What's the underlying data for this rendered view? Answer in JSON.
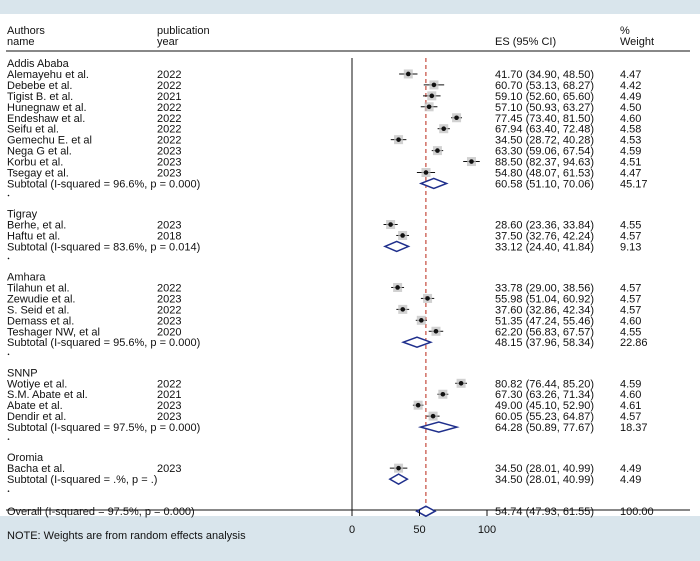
{
  "chart_data": {
    "type": "forest",
    "headers": {
      "authors": "Authors",
      "name": "name",
      "publication": "publication",
      "year": "year",
      "es": "ES (95% CI)",
      "pct": "%",
      "weight": "Weight"
    },
    "groups": [
      {
        "name": "Addis Ababa",
        "studies": [
          {
            "author": "Alemayehu et al.",
            "year": "2022",
            "es": 41.7,
            "lo": 34.9,
            "hi": 48.5,
            "ci_text": "41.70 (34.90, 48.50)",
            "weight": "4.47"
          },
          {
            "author": "Debebe et al.",
            "year": "2022",
            "es": 60.7,
            "lo": 53.13,
            "hi": 68.27,
            "ci_text": "60.70 (53.13, 68.27)",
            "weight": "4.42"
          },
          {
            "author": "Tigist B. et al.",
            "year": "2021",
            "es": 59.1,
            "lo": 52.6,
            "hi": 65.6,
            "ci_text": "59.10 (52.60, 65.60)",
            "weight": "4.49"
          },
          {
            "author": "Hunegnaw et al.",
            "year": "2022",
            "es": 57.1,
            "lo": 50.93,
            "hi": 63.27,
            "ci_text": "57.10 (50.93, 63.27)",
            "weight": "4.50"
          },
          {
            "author": "Endeshaw et al.",
            "year": "2022",
            "es": 77.45,
            "lo": 73.4,
            "hi": 81.5,
            "ci_text": "77.45 (73.40, 81.50)",
            "weight": "4.60"
          },
          {
            "author": "Seifu et al.",
            "year": "2022",
            "es": 67.94,
            "lo": 63.4,
            "hi": 72.48,
            "ci_text": "67.94 (63.40, 72.48)",
            "weight": "4.58"
          },
          {
            "author": "Gemechu E. et al",
            "year": "2022",
            "es": 34.5,
            "lo": 28.72,
            "hi": 40.28,
            "ci_text": "34.50 (28.72, 40.28)",
            "weight": "4.53"
          },
          {
            "author": "Nega G et al.",
            "year": "2023",
            "es": 63.3,
            "lo": 59.06,
            "hi": 67.54,
            "ci_text": "63.30 (59.06, 67.54)",
            "weight": "4.59"
          },
          {
            "author": "Korbu et al.",
            "year": "2023",
            "es": 88.5,
            "lo": 82.37,
            "hi": 94.63,
            "ci_text": "88.50 (82.37, 94.63)",
            "weight": "4.51"
          },
          {
            "author": "Tsegay et al.",
            "year": "2023",
            "es": 54.8,
            "lo": 48.07,
            "hi": 61.53,
            "ci_text": "54.80 (48.07, 61.53)",
            "weight": "4.47"
          }
        ],
        "subtotal": {
          "label": "Subtotal  (I-squared = 96.6%, p = 0.000)",
          "es": 60.58,
          "lo": 51.1,
          "hi": 70.06,
          "ci_text": "60.58 (51.10, 70.06)",
          "weight": "45.17"
        }
      },
      {
        "name": "Tigray",
        "studies": [
          {
            "author": "Berhe, et al.",
            "year": "2023",
            "es": 28.6,
            "lo": 23.36,
            "hi": 33.84,
            "ci_text": "28.60 (23.36, 33.84)",
            "weight": "4.55"
          },
          {
            "author": "Haftu et al.",
            "year": "2018",
            "es": 37.5,
            "lo": 32.76,
            "hi": 42.24,
            "ci_text": "37.50 (32.76, 42.24)",
            "weight": "4.57"
          }
        ],
        "subtotal": {
          "label": "Subtotal  (I-squared = 83.6%, p = 0.014)",
          "es": 33.12,
          "lo": 24.4,
          "hi": 41.84,
          "ci_text": "33.12 (24.40, 41.84)",
          "weight": "9.13"
        }
      },
      {
        "name": "Amhara",
        "studies": [
          {
            "author": "Tilahun et al.",
            "year": "2022",
            "es": 33.78,
            "lo": 29.0,
            "hi": 38.56,
            "ci_text": "33.78 (29.00, 38.56)",
            "weight": "4.57"
          },
          {
            "author": "Zewudie et al.",
            "year": "2023",
            "es": 55.98,
            "lo": 51.04,
            "hi": 60.92,
            "ci_text": "55.98 (51.04, 60.92)",
            "weight": "4.57"
          },
          {
            "author": "S. Seid et al.",
            "year": "2022",
            "es": 37.6,
            "lo": 32.86,
            "hi": 42.34,
            "ci_text": "37.60 (32.86, 42.34)",
            "weight": "4.57"
          },
          {
            "author": "Demass et al.",
            "year": "2023",
            "es": 51.35,
            "lo": 47.24,
            "hi": 55.46,
            "ci_text": "51.35 (47.24, 55.46)",
            "weight": "4.60"
          },
          {
            "author": "Teshager NW, et al",
            "year": "2020",
            "es": 62.2,
            "lo": 56.83,
            "hi": 67.57,
            "ci_text": "62.20 (56.83, 67.57)",
            "weight": "4.55"
          }
        ],
        "subtotal": {
          "label": "Subtotal  (I-squared = 95.6%, p = 0.000)",
          "es": 48.15,
          "lo": 37.96,
          "hi": 58.34,
          "ci_text": "48.15 (37.96, 58.34)",
          "weight": "22.86"
        }
      },
      {
        "name": "SNNP",
        "studies": [
          {
            "author": "Wotiye et al.",
            "year": "2022",
            "es": 80.82,
            "lo": 76.44,
            "hi": 85.2,
            "ci_text": "80.82 (76.44, 85.20)",
            "weight": "4.59"
          },
          {
            "author": "S.M. Abate et al.",
            "year": "2021",
            "es": 67.3,
            "lo": 63.26,
            "hi": 71.34,
            "ci_text": "67.30 (63.26, 71.34)",
            "weight": "4.60"
          },
          {
            "author": "Abate et al.",
            "year": "2023",
            "es": 49.0,
            "lo": 45.1,
            "hi": 52.9,
            "ci_text": "49.00 (45.10, 52.90)",
            "weight": "4.61"
          },
          {
            "author": "Dendir et al.",
            "year": "2023",
            "es": 60.05,
            "lo": 55.23,
            "hi": 64.87,
            "ci_text": "60.05 (55.23, 64.87)",
            "weight": "4.57"
          }
        ],
        "subtotal": {
          "label": "Subtotal  (I-squared = 97.5%, p = 0.000)",
          "es": 64.28,
          "lo": 50.89,
          "hi": 77.67,
          "ci_text": "64.28 (50.89, 77.67)",
          "weight": "18.37"
        }
      },
      {
        "name": "Oromia",
        "studies": [
          {
            "author": "Bacha et al.",
            "year": "2023",
            "es": 34.5,
            "lo": 28.01,
            "hi": 40.99,
            "ci_text": "34.50 (28.01, 40.99)",
            "weight": "4.49"
          }
        ],
        "subtotal": {
          "label": "Subtotal  (I-squared = .%, p = .)",
          "es": 34.5,
          "lo": 28.01,
          "hi": 40.99,
          "ci_text": "34.50 (28.01, 40.99)",
          "weight": "4.49"
        }
      }
    ],
    "overall": {
      "label": "Overall  (I-squared = 97.5%, p = 0.000)",
      "es": 54.74,
      "lo": 47.93,
      "hi": 61.55,
      "ci_text": "54.74 (47.93, 61.55)",
      "weight": "100.00"
    },
    "note": "NOTE: Weights are from random effects analysis",
    "x_ticks": [
      0,
      50,
      100
    ],
    "xlim": [
      0,
      100
    ],
    "reference_line": 54.74,
    "colors": {
      "background": "#d9e5ec",
      "panel": "#ffffff",
      "diamond": "#1f2f8c",
      "reference_line": "#c0392b",
      "point": "#111111"
    }
  }
}
